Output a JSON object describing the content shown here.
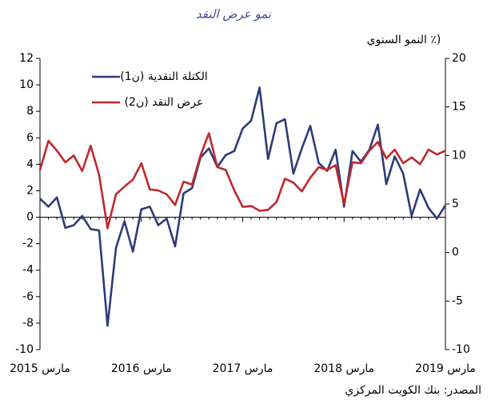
{
  "chart_data": {
    "type": "line",
    "title": "نمو عرض النقد",
    "y2_label": "(٪ النمو السنوي",
    "source": "المصدر: بنك الكويت المركزي",
    "legend": "upper left",
    "grid": false,
    "categories": [
      "مارس 2015",
      null,
      null,
      null,
      null,
      null,
      null,
      null,
      null,
      null,
      null,
      null,
      "مارس 2016",
      null,
      null,
      null,
      null,
      null,
      null,
      null,
      null,
      null,
      null,
      null,
      "مارس 2017",
      null,
      null,
      null,
      null,
      null,
      null,
      null,
      null,
      null,
      null,
      null,
      "مارس 2018",
      null,
      null,
      null,
      null,
      null,
      null,
      null,
      null,
      null,
      null,
      null,
      "مارس 2019"
    ],
    "ylim": [
      -10,
      12
    ],
    "yticks": [
      -10,
      -8,
      -6,
      -4,
      -2,
      0,
      2,
      4,
      6,
      8,
      10,
      12
    ],
    "y2lim": [
      -10,
      20
    ],
    "y2ticks": [
      -10,
      -5,
      0,
      5,
      10,
      15,
      20
    ],
    "series": [
      {
        "name": "الكتلة النقدية (ن1)",
        "color": "#2e3b78",
        "axis": "y",
        "values": [
          1.4,
          0.8,
          1.5,
          -0.8,
          -0.6,
          0.1,
          -0.9,
          -1.0,
          -8.2,
          -2.3,
          -0.3,
          -2.6,
          0.6,
          0.8,
          -0.6,
          -0.1,
          -2.2,
          1.8,
          2.2,
          4.5,
          5.2,
          3.8,
          4.7,
          5.0,
          6.7,
          7.3,
          9.8,
          4.4,
          7.1,
          7.4,
          3.3,
          5.2,
          6.9,
          4.1,
          3.5,
          5.1,
          0.8,
          5.0,
          4.2,
          5.1,
          7.0,
          2.5,
          4.6,
          3.3,
          0.1,
          2.1,
          0.7,
          -0.1,
          0.9
        ]
      },
      {
        "name": "عرض النقد (ن2)",
        "color": "#c0282d",
        "axis": "y2",
        "values": [
          8.5,
          11.5,
          10.5,
          9.3,
          10.0,
          8.4,
          11.0,
          8.0,
          2.5,
          6.0,
          6.8,
          7.5,
          9.2,
          6.5,
          6.4,
          6.0,
          4.9,
          7.3,
          7.0,
          10.0,
          12.3,
          8.8,
          8.5,
          6.4,
          4.7,
          4.8,
          4.3,
          4.4,
          5.2,
          7.6,
          7.2,
          6.3,
          7.7,
          8.8,
          8.5,
          9.0,
          5.0,
          9.3,
          9.2,
          10.5,
          11.4,
          9.7,
          10.6,
          9.2,
          9.8,
          9.1,
          10.6,
          10.1,
          10.5
        ]
      }
    ]
  }
}
